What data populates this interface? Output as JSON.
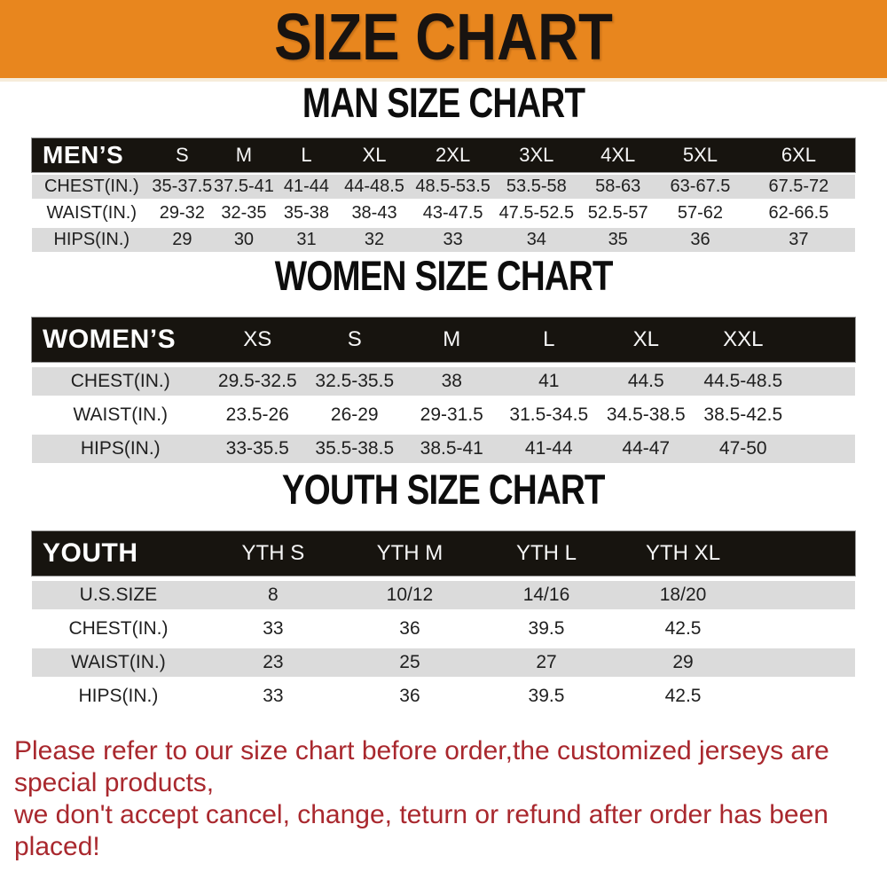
{
  "banner": {
    "title": "SIZE CHART"
  },
  "colors": {
    "banner_orange": "#E8861E",
    "table_header_black": "#17140F",
    "row_stripe_gray": "#DBDBDB",
    "footer_red": "#A9282E"
  },
  "chart_data": [
    {
      "type": "table",
      "title": "MAN SIZE CHART",
      "columns": [
        "MEN’S",
        "S",
        "M",
        "L",
        "XL",
        "2XL",
        "3XL",
        "4XL",
        "5XL",
        "6XL"
      ],
      "rows": [
        [
          "CHEST(IN.)",
          "35-37.5",
          "37.5-41",
          "41-44",
          "44-48.5",
          "48.5-53.5",
          "53.5-58",
          "58-63",
          "63-67.5",
          "67.5-72"
        ],
        [
          "WAIST(IN.)",
          "29-32",
          "32-35",
          "35-38",
          "38-43",
          "43-47.5",
          "47.5-52.5",
          "52.5-57",
          "57-62",
          "62-66.5"
        ],
        [
          "HIPS(IN.)",
          "29",
          "30",
          "31",
          "32",
          "33",
          "34",
          "35",
          "36",
          "37"
        ]
      ]
    },
    {
      "type": "table",
      "title": "WOMEN SIZE CHART",
      "columns": [
        "WOMEN’S",
        "XS",
        "S",
        "M",
        "L",
        "XL",
        "XXL"
      ],
      "rows": [
        [
          "CHEST(IN.)",
          "29.5-32.5",
          "32.5-35.5",
          "38",
          "41",
          "44.5",
          "44.5-48.5"
        ],
        [
          "WAIST(IN.)",
          "23.5-26",
          "26-29",
          "29-31.5",
          "31.5-34.5",
          "34.5-38.5",
          "38.5-42.5"
        ],
        [
          "HIPS(IN.)",
          "33-35.5",
          "35.5-38.5",
          "38.5-41",
          "41-44",
          "44-47",
          "47-50"
        ]
      ]
    },
    {
      "type": "table",
      "title": "YOUTH SIZE CHART",
      "columns": [
        "YOUTH",
        "YTH S",
        "YTH M",
        "YTH L",
        "YTH XL"
      ],
      "rows": [
        [
          "U.S.SIZE",
          "8",
          "10/12",
          "14/16",
          "18/20"
        ],
        [
          "CHEST(IN.)",
          "33",
          "36",
          "39.5",
          "42.5"
        ],
        [
          "WAIST(IN.)",
          "23",
          "25",
          "27",
          "29"
        ],
        [
          "HIPS(IN.)",
          "33",
          "36",
          "39.5",
          "42.5"
        ]
      ]
    }
  ],
  "footer": {
    "line1": "Please refer to our size chart before order,the customized jerseys are special products,",
    "line2": "we don't accept cancel, change, teturn or refund after order has been placed!"
  }
}
